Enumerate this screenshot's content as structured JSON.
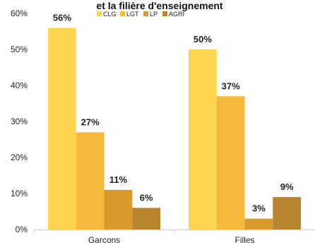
{
  "chart_data": {
    "type": "bar",
    "title": "et la filière d'enseignement",
    "categories": [
      "Garcons",
      "Filles"
    ],
    "series": [
      {
        "name": "CLG",
        "values": [
          56,
          50
        ],
        "labels": [
          "56%",
          "50%"
        ],
        "color": "#FFD54F"
      },
      {
        "name": "LGT",
        "values": [
          27,
          37
        ],
        "labels": [
          "27%",
          "37%"
        ],
        "color": "#F6B93B"
      },
      {
        "name": "LP",
        "values": [
          11,
          3
        ],
        "labels": [
          "11%",
          "3%"
        ],
        "color": "#D99A2B"
      },
      {
        "name": "AGRI",
        "values": [
          6,
          9
        ],
        "labels": [
          "6%",
          "9%"
        ],
        "color": "#B9842F"
      }
    ],
    "ylim": [
      0,
      60
    ],
    "yticks": [
      0,
      10,
      20,
      30,
      40,
      50,
      60
    ],
    "ytick_labels": [
      "0%",
      "10%",
      "20%",
      "30%",
      "40%",
      "50%",
      "60%"
    ],
    "grid": false,
    "legend_position": "top-center"
  }
}
